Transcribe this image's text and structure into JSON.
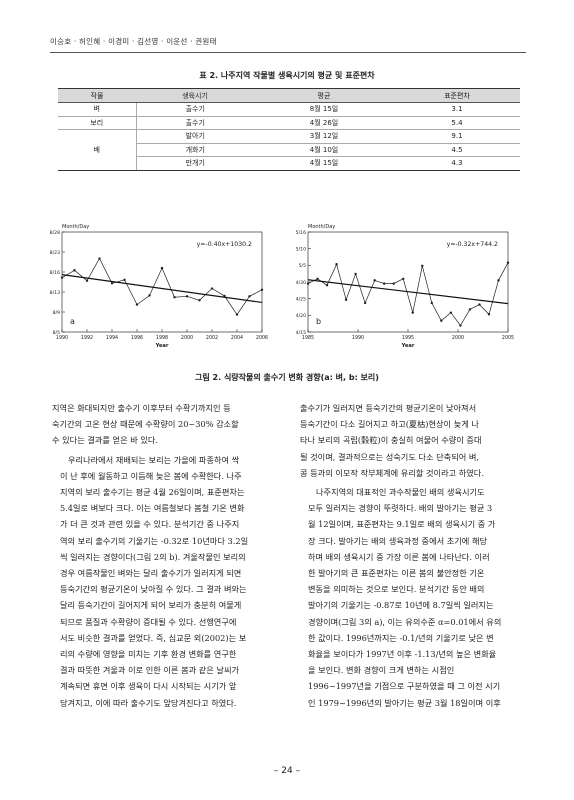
{
  "header": {
    "authors": "이승호 · 허인혜 · 이경미 · 김선영 · 이윤선 · 권원태"
  },
  "table": {
    "caption": "표 2. 나주지역 작물별 생육시기의 평균 및 표준편차",
    "columns": [
      "작물",
      "생육시기",
      "평균",
      "표준편차"
    ],
    "rows": [
      {
        "crop": "벼",
        "stage": "출수기",
        "mean": "8월 15일",
        "sd": "3.1"
      },
      {
        "crop": "보리",
        "stage": "출수기",
        "mean": "4월 26일",
        "sd": "5.4"
      },
      {
        "crop": "",
        "stage": "발아기",
        "mean": "3월 12일",
        "sd": "9.1"
      },
      {
        "crop": "배",
        "stage": "개화기",
        "mean": "4월 10일",
        "sd": "4.5"
      },
      {
        "crop": "",
        "stage": "만개기",
        "mean": "4월 15일",
        "sd": "4.3"
      }
    ]
  },
  "chart_data": [
    {
      "type": "line",
      "panel_label": "a",
      "ylabel": "Month/Day",
      "xlabel": "Year",
      "equation": "y=-0.40x+1030.2",
      "x_ticks": [
        "1990",
        "1992",
        "1994",
        "1996",
        "1998",
        "2000",
        "2002",
        "2004",
        "2006"
      ],
      "y_ticks": [
        "8/5",
        "8/9",
        "8/13",
        "8/16",
        "8/23",
        "8/28"
      ],
      "x": [
        1990,
        1991,
        1992,
        1993,
        1994,
        1995,
        1996,
        1997,
        1998,
        1999,
        2000,
        2001,
        2002,
        2003,
        2004,
        2005,
        2006
      ],
      "y": [
        17.5,
        19.2,
        16.8,
        21.9,
        16.2,
        17.0,
        11.3,
        13.4,
        19.7,
        13.0,
        13.2,
        12.3,
        15.0,
        13.3,
        9.0,
        13.2,
        14.7
      ],
      "trend": {
        "start": [
          1990,
          18.2
        ],
        "end": [
          2006,
          11.8
        ]
      },
      "xlim": [
        1990,
        2006
      ],
      "ylim": [
        5,
        28
      ]
    },
    {
      "type": "line",
      "panel_label": "b",
      "ylabel": "Month/Day",
      "xlabel": "Year",
      "equation": "y=-0.32x+744.2",
      "x_ticks": [
        "1985",
        "1990",
        "1995",
        "2000",
        "2005"
      ],
      "y_ticks": [
        "4/15",
        "4/20",
        "4/25",
        "4/30",
        "5/5",
        "5/10",
        "5/16"
      ],
      "x": [
        1985,
        1986,
        1987,
        1988,
        1989,
        1990,
        1991,
        1992,
        1993,
        1994,
        1995,
        1996,
        1997,
        1998,
        1999,
        2000,
        2001,
        2002,
        2003,
        2004,
        2005,
        2006
      ],
      "y": [
        30,
        31.5,
        29.5,
        36,
        25,
        33,
        24,
        31,
        30,
        30,
        31.5,
        21,
        35.5,
        24,
        18.5,
        21,
        17,
        22,
        23.5,
        20.5,
        31,
        36.5
      ],
      "trend": {
        "start": [
          1985,
          31.2
        ],
        "end": [
          2006,
          23.8
        ]
      },
      "xlim": [
        1985,
        2006
      ],
      "ylim": [
        15,
        46
      ]
    }
  ],
  "figure": {
    "caption": "그림 2. 식량작물의 출수기 변화 경향(a: 벼, b: 보리)"
  },
  "body": {
    "left": [
      [
        "지역은 화대되지만 출수기 이후부터 수확기까지인 등",
        "숙기간의 고온 현상 때문에 수확량이 20~30% 감소할",
        "수 있다는 결과를 얻은 바 있다."
      ],
      [
        "우리나라에서 재배되는 보리는 가을에 파종하여 싹",
        "이 난 후에 월동하고 이듬해 늦은 봄에 수확한다. 나주",
        "지역의 보리 출수기는 평균 4월 26일이며, 표준편차는",
        "5.4일로 벼보다 크다. 이는 여름철보다 봄철 기온 변화",
        "가 더 큰 것과 관련 있을 수 있다. 분석기간 중 나주지",
        "역의 보리 출수기의 기울기는 -0.32로 10년마다 3.2일",
        "씩 일러지는 경향이다(그림 2의 b). 겨울작물인 보리의",
        "경우 여름작물인 벼와는 달리 출수기가 일러지게 되면",
        "등숙기간의 평균기온이 낮아질 수 있다. 그 결과 벼와는",
        "달리 등숙기간이 길어지게 되어 보리가 충분히 여물게",
        "되므로 품질과 수확량이 증대될 수 있다. 선행연구에",
        "서도 비슷한 결과를 얻었다. 즉, 심교문 외(2002)는 보",
        "리의 수량에 영향을 미치는 기후 환경 변화를 연구한",
        "결과 따뜻한 겨울과 이로 인한 이른 봄과 같은 날씨가",
        "계속되면 휴면 이후 생육이 다시 시작되는 시기가 앞",
        "당겨지고, 이에 따라 출수기도 앞당겨진다고 하였다."
      ]
    ],
    "right": [
      [
        "출수기가 일러지면 등숙기간의 평균기온이 낮아져서",
        "등숙기간이 다소 길어지고 하고(夏枯)현상이 늦게 나",
        "타나 보리의 곡립(穀粒)이 충실히 여물어 수량이 증대",
        "될 것이며, 결과적으로는 성숙기도 다소 단축되어 벼,",
        "콩 등과의 이모작 작부체계에 유리할 것이라고 하였다."
      ],
      [
        "나주지역의 대표적인 과수작물인 배의 생육시기도",
        "모두 일러지는 경향이 뚜렷하다. 배의 발아기는 평균 3",
        "월 12일이며, 표준편차는 9.1일로 배의 생육시기 중 가",
        "장 크다. 발아기는 배의 생육과정 중에서 초기에 해당",
        "하며 배의 생육시기 중 가장 이른 봄에 나타난다. 이러",
        "한 발아기의 큰 표준편차는 이른 봄의 불안정한 기온",
        "변동을 의미하는 것으로 보인다. 분석기간 동안 배의",
        "발아기의 기울기는 -0.87로 10년에 8.7일씩 일러지는",
        "경향이며(그림 3의 a), 이는 유의수준 α=0.01에서 유의",
        "한 값이다. 1996년까지는 -0.1/년의 기울기로 낮은 변",
        "화율을 보이다가 1997년 이후 -1.13/년의 높은 변화율",
        "을 보인다. 변화 경향이 크게 변하는 시점인",
        "1996~1997년을 기점으로 구분하였을 때 그 이전 시기",
        "인 1979~1996년의 발아기는 평균 3월 18일이며 이후"
      ]
    ]
  },
  "page_number": "– 24 –"
}
